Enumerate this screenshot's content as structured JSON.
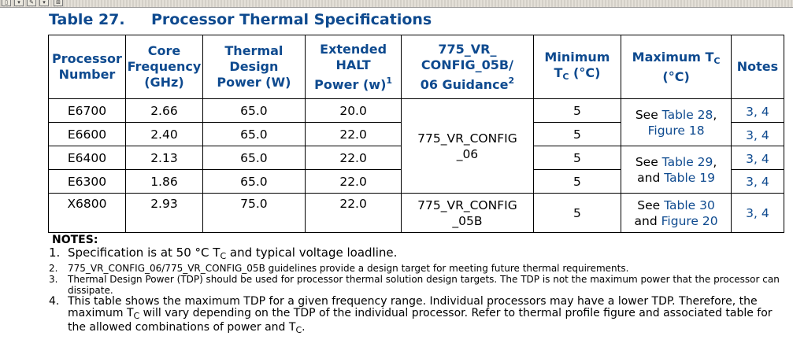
{
  "caption": {
    "number": "Table 27.",
    "title": "Processor Thermal Specifications"
  },
  "table": {
    "headers": {
      "processor": [
        "Processor",
        "Number"
      ],
      "freq": [
        "Core",
        "Frequency",
        "(GHz)"
      ],
      "tdp": [
        "Thermal",
        "Design",
        "Power (W)"
      ],
      "halt": [
        "Extended",
        "HALT",
        "Power (w)",
        "1"
      ],
      "vr": [
        "775_VR_",
        "CONFIG_05B/",
        "06 Guidance",
        "2"
      ],
      "mintc": [
        "Minimum",
        "T",
        "C",
        " (°C)"
      ],
      "maxtc": [
        "Maximum T",
        "C",
        "(°C)"
      ],
      "notes": "Notes"
    },
    "rows": [
      {
        "processor": "E6700",
        "freq": "2.66",
        "tdp": "65.0",
        "halt": "20.0",
        "mintc": "5",
        "notes": "3, 4"
      },
      {
        "processor": "E6600",
        "freq": "2.40",
        "tdp": "65.0",
        "halt": "22.0",
        "mintc": "5",
        "notes": "3, 4"
      },
      {
        "processor": "E6400",
        "freq": "2.13",
        "tdp": "65.0",
        "halt": "22.0",
        "mintc": "5",
        "notes": "3, 4"
      },
      {
        "processor": "E6300",
        "freq": "1.86",
        "tdp": "65.0",
        "halt": "22.0",
        "mintc": "5",
        "notes": "3, 4"
      },
      {
        "processor": "X6800",
        "freq": "2.93",
        "tdp": "75.0",
        "halt": "22.0",
        "mintc": "5",
        "notes": "3, 4"
      }
    ],
    "vr_groups": {
      "config06": [
        "775_VR_CONFIG",
        "_06"
      ],
      "config05b": [
        "775_VR_CONFIG",
        "_05B"
      ]
    },
    "maxtc_groups": {
      "a": {
        "see": "See ",
        "link1": "Table 28",
        "sep": ",",
        "link2": "Figure 18"
      },
      "b": {
        "see": "See ",
        "link1": "Table 29",
        "sep": ",",
        "and": "and ",
        "link2": "Table 19"
      },
      "c": {
        "see": "See ",
        "link1": "Table 30",
        "and": "and ",
        "link2": "Figure 20"
      }
    }
  },
  "notes": {
    "heading": "NOTES:",
    "items": [
      {
        "n": "1.",
        "a": "Specification is at 50 °C T",
        "sub": "C",
        "b": " and typical voltage loadline."
      },
      {
        "n": "2.",
        "text": "775_VR_CONFIG_06/775_VR_CONFIG_05B guidelines provide a design target for meeting future thermal requirements."
      },
      {
        "n": "3.",
        "text": "Thermal Design Power (TDP) should be used for processor thermal solution design targets. The TDP is not the maximum power that the processor can dissipate."
      },
      {
        "n": "4.",
        "a": "This table shows the maximum TDP for a given frequency range. Individual processors may have a lower TDP. Therefore, the maximum T",
        "sub": "C",
        "b": " will vary depending on the TDP of the individual processor. Refer to thermal profile figure and associated table for the allowed combinations of power and T",
        "sub2": "C",
        "c": "."
      }
    ]
  }
}
